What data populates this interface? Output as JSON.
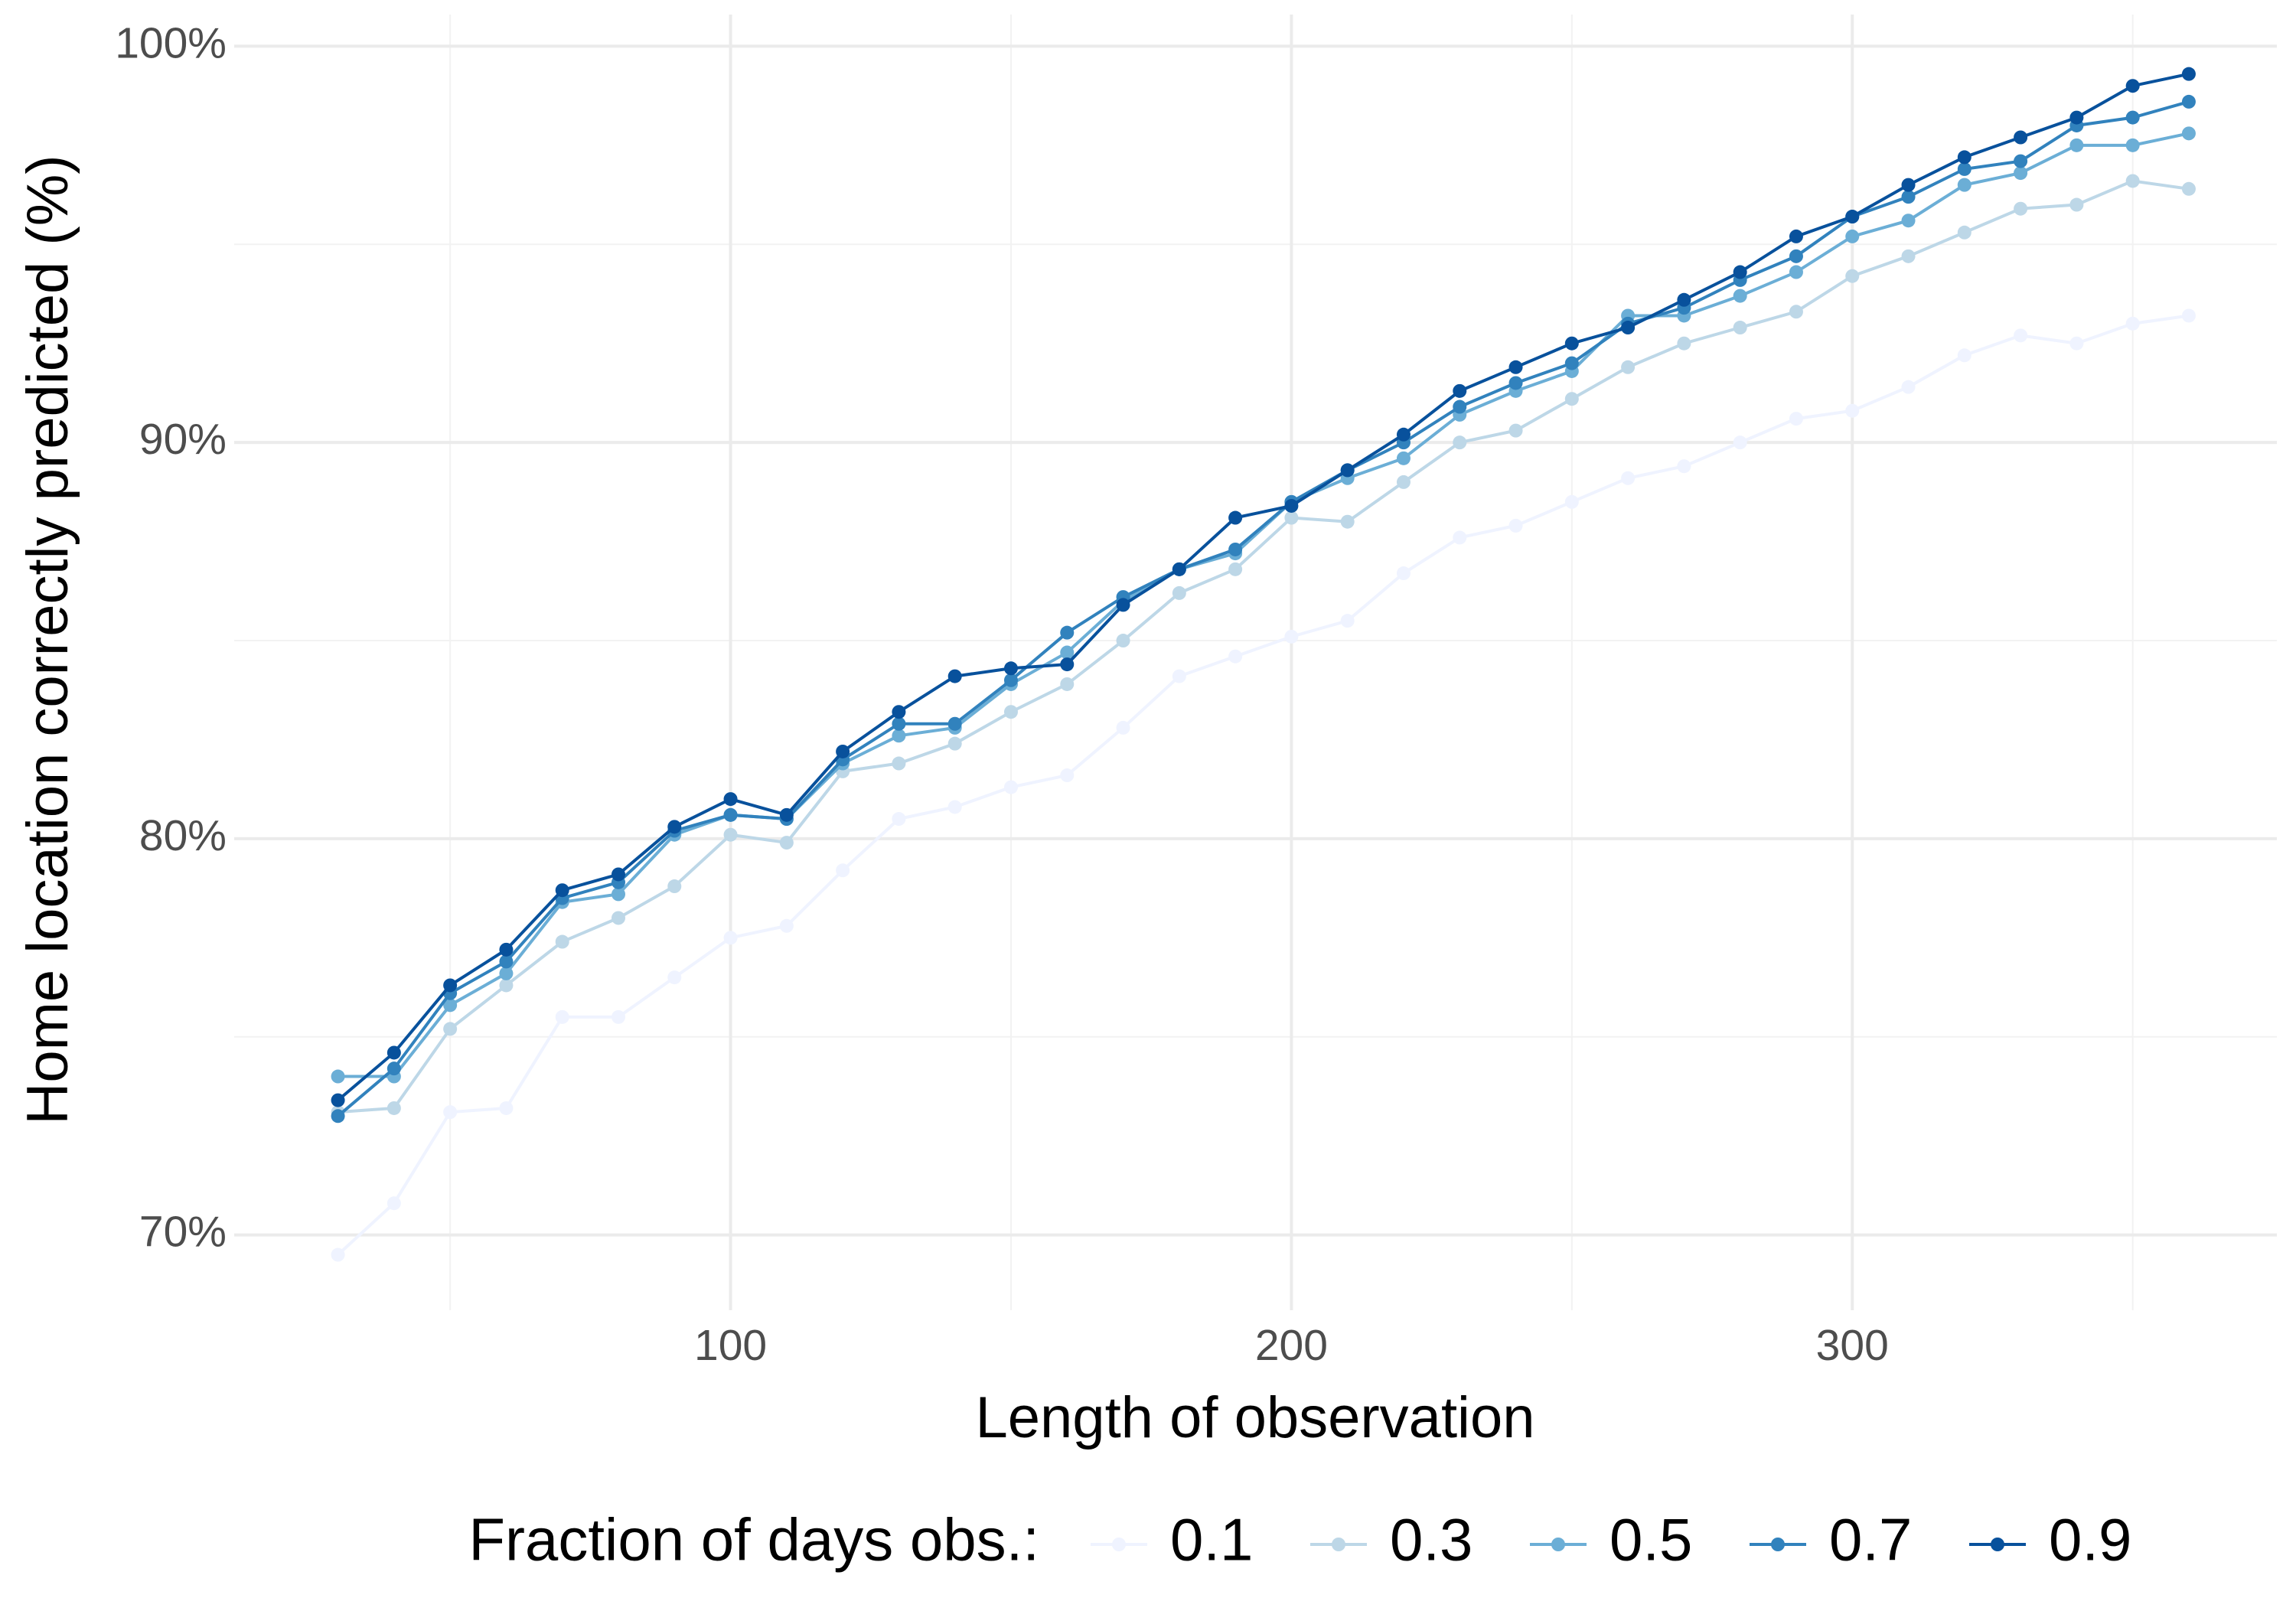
{
  "chart_data": {
    "type": "line",
    "x_label": "Length of observation",
    "y_label": "Home location correctly predicted (%)",
    "legend_title": "Fraction of days obs.:",
    "legend_position": "bottom",
    "grid": true,
    "x": [
      30,
      40,
      50,
      60,
      70,
      80,
      90,
      100,
      110,
      120,
      130,
      140,
      150,
      160,
      170,
      180,
      190,
      200,
      210,
      220,
      230,
      240,
      250,
      260,
      270,
      280,
      290,
      300,
      310,
      320,
      330,
      340,
      350,
      360
    ],
    "xlim": [
      11.5,
      375.7
    ],
    "xticks": [
      100,
      200,
      300
    ],
    "ylim": [
      68.1,
      100.8
    ],
    "yticks": [
      {
        "value": 70,
        "label": "70%"
      },
      {
        "value": 80,
        "label": "80%"
      },
      {
        "value": 90,
        "label": "90%"
      },
      {
        "value": 100,
        "label": "100%"
      }
    ],
    "series": [
      {
        "name": "0.1",
        "color": "#eff3ff",
        "values": [
          69.5,
          70.8,
          73.1,
          73.2,
          75.5,
          75.5,
          76.5,
          77.5,
          77.8,
          79.2,
          80.5,
          80.8,
          81.3,
          81.6,
          82.8,
          84.1,
          84.6,
          85.1,
          85.5,
          86.7,
          87.6,
          87.9,
          88.5,
          89.1,
          89.4,
          90.0,
          90.6,
          90.8,
          91.4,
          92.2,
          92.7,
          92.5,
          93.0,
          93.2
        ]
      },
      {
        "name": "0.3",
        "color": "#bdd7e7",
        "values": [
          73.1,
          73.2,
          75.2,
          76.3,
          77.4,
          78.0,
          78.8,
          80.1,
          79.9,
          81.7,
          81.9,
          82.4,
          83.2,
          83.9,
          85.0,
          86.2,
          86.8,
          88.1,
          88.0,
          89.0,
          90.0,
          90.3,
          91.1,
          91.9,
          92.5,
          92.9,
          93.3,
          94.2,
          94.7,
          95.3,
          95.9,
          96.0,
          96.6,
          96.4
        ]
      },
      {
        "name": "0.5",
        "color": "#6baed6",
        "values": [
          74.0,
          74.0,
          75.8,
          76.6,
          78.4,
          78.6,
          80.1,
          80.6,
          80.5,
          81.9,
          82.6,
          82.8,
          83.9,
          84.7,
          86.0,
          86.8,
          87.2,
          88.5,
          89.1,
          89.6,
          90.7,
          91.3,
          91.8,
          93.2,
          93.2,
          93.7,
          94.3,
          95.2,
          95.6,
          96.5,
          96.8,
          97.5,
          97.5,
          97.8
        ]
      },
      {
        "name": "0.7",
        "color": "#3182bd",
        "values": [
          73.0,
          74.2,
          76.1,
          76.9,
          78.5,
          78.9,
          80.2,
          80.6,
          80.5,
          82.0,
          82.9,
          82.9,
          84.0,
          85.2,
          86.1,
          86.8,
          87.3,
          88.5,
          89.3,
          90.0,
          90.9,
          91.5,
          92.0,
          93.0,
          93.4,
          94.1,
          94.7,
          95.7,
          96.2,
          96.9,
          97.1,
          98.0,
          98.2,
          98.6
        ]
      },
      {
        "name": "0.9",
        "color": "#08519c",
        "values": [
          73.4,
          74.6,
          76.3,
          77.2,
          78.7,
          79.1,
          80.3,
          81.0,
          80.6,
          82.2,
          83.2,
          84.1,
          84.3,
          84.4,
          85.9,
          86.8,
          88.1,
          88.4,
          89.3,
          90.2,
          91.3,
          91.9,
          92.5,
          92.9,
          93.6,
          94.3,
          95.2,
          95.7,
          96.5,
          97.2,
          97.7,
          98.2,
          99.0,
          99.3
        ]
      }
    ]
  }
}
